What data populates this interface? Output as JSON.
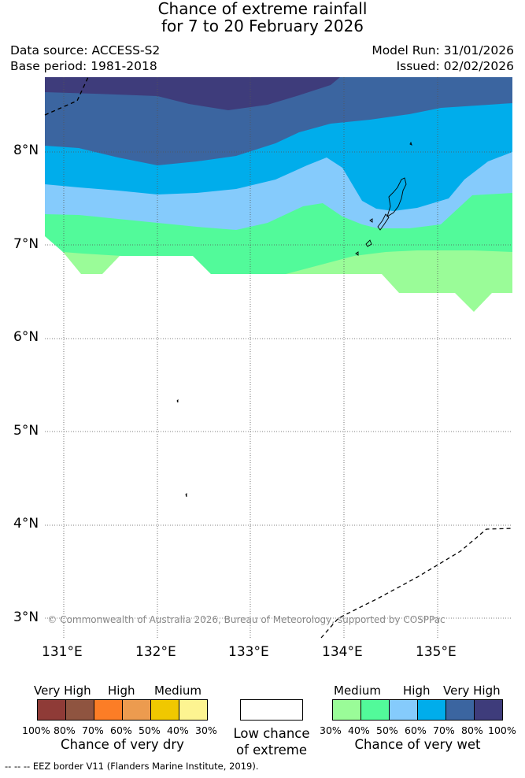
{
  "title": {
    "line1": "Chance of extreme rainfall",
    "line2": "for 7 to 20 February 2026"
  },
  "meta": {
    "data_source": "Data source: ACCESS-S2",
    "base_period": "Base period: 1981-2018",
    "model_run": "Model Run: 31/01/2026",
    "issued": "Issued: 02/02/2026"
  },
  "map": {
    "lat_labels": [
      "8°N",
      "7°N",
      "6°N",
      "5°N",
      "4°N",
      "3°N"
    ],
    "lon_labels": [
      "131°E",
      "132°E",
      "133°E",
      "134°E",
      "135°E"
    ],
    "copyright": "© Commonwealth of Australia 2026, Bureau of Meteorology, supported by COSPPac",
    "colors": {
      "wet_30_40": "#9afc98",
      "wet_40_50": "#52fa9a",
      "wet_50_60": "#85cbfc",
      "wet_60_70": "#00adeb",
      "wet_70_80": "#3b65a0",
      "wet_80_100": "#3e3c7b"
    }
  },
  "legend": {
    "dry": {
      "categories": [
        "Very High",
        "High",
        "Medium"
      ],
      "colors": [
        "#8f3b37",
        "#8f5440",
        "#fc7d26",
        "#ec9b4f",
        "#f0c800",
        "#fdf491"
      ],
      "pcts": [
        "100%",
        "80%",
        "70%",
        "60%",
        "50%",
        "40%",
        "30%"
      ],
      "label": "Chance of very dry"
    },
    "low": {
      "line1": "Low chance",
      "line2": "of extreme",
      "color": "#ffffff"
    },
    "wet": {
      "categories": [
        "Medium",
        "High",
        "Very High"
      ],
      "colors": [
        "#9afc98",
        "#52fa9a",
        "#85cbfc",
        "#00adeb",
        "#3b65a0",
        "#3e3c7b"
      ],
      "pcts": [
        "30%",
        "40%",
        "50%",
        "60%",
        "70%",
        "80%",
        "100%"
      ],
      "label": "Chance of very wet"
    }
  },
  "footer": "--  --  -- EEZ border V11 (Flanders Marine Institute, 2019)."
}
